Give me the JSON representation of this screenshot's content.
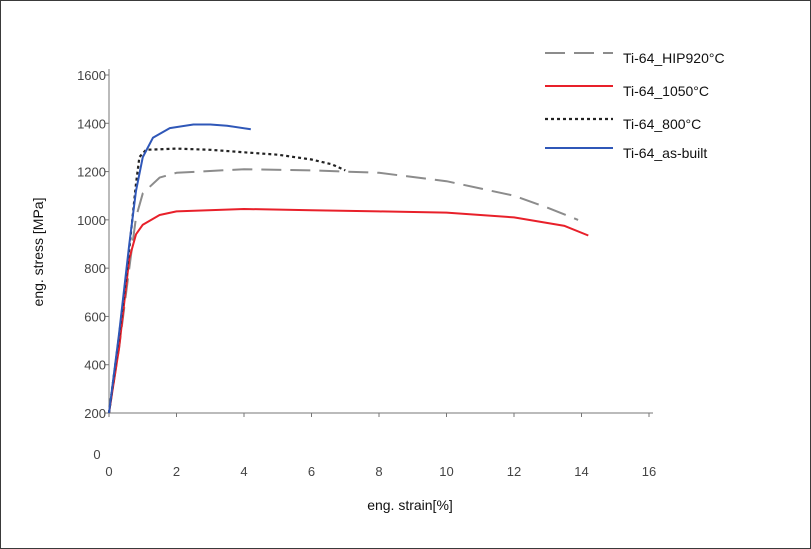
{
  "chart_data": {
    "type": "line",
    "xlabel": "eng. strain[%]",
    "ylabel": "eng. stress [MPa]",
    "xlim": [
      0,
      16
    ],
    "ylim": [
      200,
      1600
    ],
    "x_ticks": [
      "0",
      "2",
      "4",
      "6",
      "8",
      "10",
      "12",
      "14",
      "16"
    ],
    "y_ticks": [
      "200",
      "400",
      "600",
      "800",
      "1000",
      "1200",
      "1400",
      "1600"
    ],
    "origin_label": "0",
    "grid": false,
    "legend_position": "top-right",
    "series": [
      {
        "name": "Ti-64_HIP920°C",
        "color": "#8c8c8c",
        "dash": "long-dash",
        "points": [
          [
            0,
            200
          ],
          [
            0.3,
            470
          ],
          [
            0.6,
            800
          ],
          [
            0.8,
            1010
          ],
          [
            1.0,
            1110
          ],
          [
            1.5,
            1175
          ],
          [
            2,
            1195
          ],
          [
            4,
            1210
          ],
          [
            6,
            1205
          ],
          [
            8,
            1195
          ],
          [
            10,
            1160
          ],
          [
            12,
            1100
          ],
          [
            13,
            1050
          ],
          [
            13.9,
            1000
          ]
        ]
      },
      {
        "name": "Ti-64_1050°C",
        "color": "#e8202a",
        "dash": "solid",
        "points": [
          [
            0,
            200
          ],
          [
            0.3,
            470
          ],
          [
            0.6,
            840
          ],
          [
            0.8,
            940
          ],
          [
            1.0,
            980
          ],
          [
            1.5,
            1020
          ],
          [
            2,
            1035
          ],
          [
            4,
            1045
          ],
          [
            6,
            1040
          ],
          [
            8,
            1035
          ],
          [
            10,
            1030
          ],
          [
            12,
            1010
          ],
          [
            13.5,
            975
          ],
          [
            14.2,
            935
          ]
        ]
      },
      {
        "name": "Ti-64_800°C",
        "color": "#222222",
        "dash": "dotted",
        "points": [
          [
            0,
            200
          ],
          [
            0.3,
            520
          ],
          [
            0.6,
            880
          ],
          [
            0.8,
            1150
          ],
          [
            0.9,
            1260
          ],
          [
            1.1,
            1290
          ],
          [
            2,
            1295
          ],
          [
            3,
            1290
          ],
          [
            4,
            1280
          ],
          [
            5,
            1270
          ],
          [
            6,
            1250
          ],
          [
            6.6,
            1230
          ],
          [
            7.0,
            1205
          ]
        ]
      },
      {
        "name": "Ti-64_as-built",
        "color": "#2f57b8",
        "dash": "solid",
        "points": [
          [
            0,
            200
          ],
          [
            0.3,
            530
          ],
          [
            0.6,
            900
          ],
          [
            0.8,
            1120
          ],
          [
            1.0,
            1260
          ],
          [
            1.3,
            1340
          ],
          [
            1.8,
            1380
          ],
          [
            2.5,
            1395
          ],
          [
            3.0,
            1395
          ],
          [
            3.5,
            1390
          ],
          [
            4.2,
            1375
          ]
        ]
      }
    ]
  }
}
